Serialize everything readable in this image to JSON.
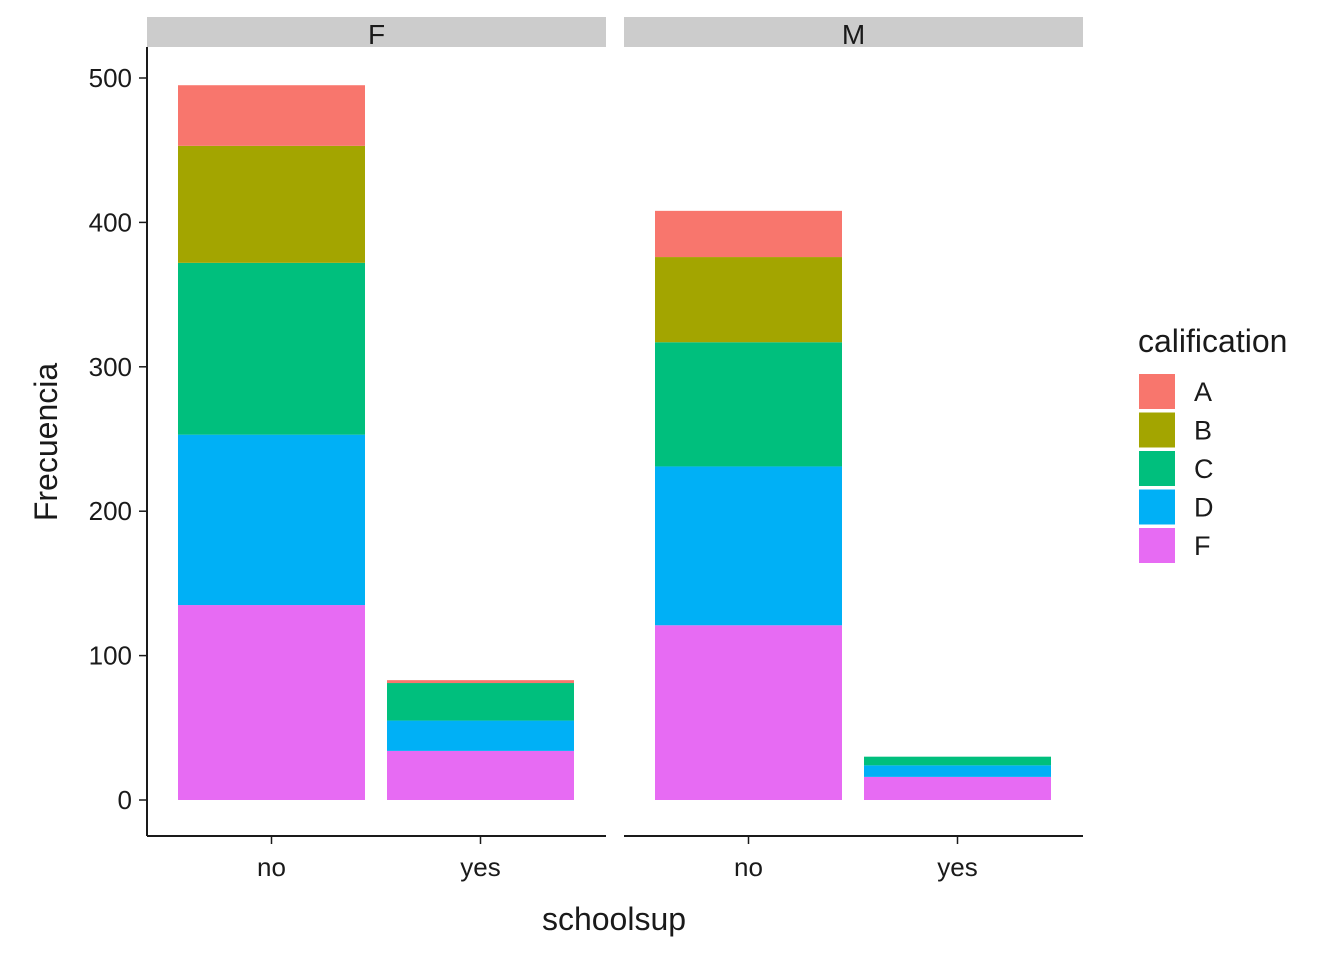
{
  "chart_data": {
    "type": "bar",
    "stacked": true,
    "facet_by": "sex",
    "panels": [
      {
        "name": "F",
        "categories": [
          "no",
          "yes"
        ],
        "series": [
          {
            "name": "F",
            "values": [
              135,
              34
            ]
          },
          {
            "name": "D",
            "values": [
              118,
              21
            ]
          },
          {
            "name": "C",
            "values": [
              119,
              26
            ]
          },
          {
            "name": "B",
            "values": [
              81,
              0
            ]
          },
          {
            "name": "A",
            "values": [
              42,
              2
            ]
          }
        ]
      },
      {
        "name": "M",
        "categories": [
          "no",
          "yes"
        ],
        "series": [
          {
            "name": "F",
            "values": [
              121,
              16
            ]
          },
          {
            "name": "D",
            "values": [
              110,
              8
            ]
          },
          {
            "name": "C",
            "values": [
              86,
              6
            ]
          },
          {
            "name": "B",
            "values": [
              59,
              0
            ]
          },
          {
            "name": "A",
            "values": [
              32,
              0
            ]
          }
        ]
      }
    ],
    "xlabel": "schoolsup",
    "ylabel": "Frecuencia",
    "ylim": [
      0,
      500
    ],
    "yticks": [
      0,
      100,
      200,
      300,
      400,
      500
    ],
    "grid": false,
    "legend": {
      "title": "calification",
      "placement": "right",
      "entries": [
        {
          "label": "A",
          "color": "#F8766D"
        },
        {
          "label": "B",
          "color": "#A3A500"
        },
        {
          "label": "C",
          "color": "#00BF7D"
        },
        {
          "label": "D",
          "color": "#00B0F6"
        },
        {
          "label": "F",
          "color": "#E76BF3"
        }
      ]
    }
  }
}
